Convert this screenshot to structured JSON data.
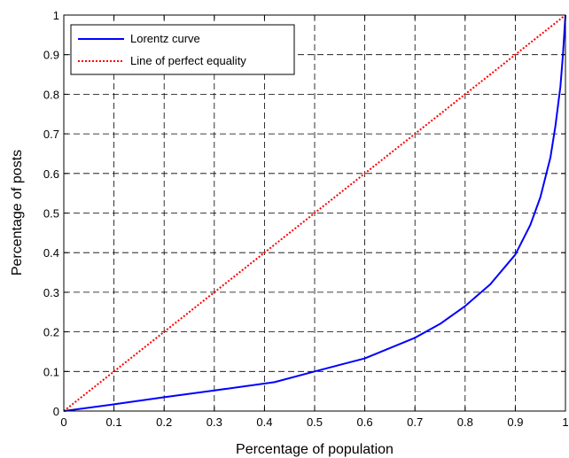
{
  "chart_data": {
    "type": "line",
    "title": "",
    "xlabel": "Percentage of population",
    "ylabel": "Percentage of posts",
    "xlim": [
      0,
      1
    ],
    "ylim": [
      0,
      1
    ],
    "xticks": [
      0,
      0.1,
      0.2,
      0.3,
      0.4,
      0.5,
      0.6,
      0.7,
      0.8,
      0.9,
      1
    ],
    "yticks": [
      0,
      0.1,
      0.2,
      0.3,
      0.4,
      0.5,
      0.6,
      0.7,
      0.8,
      0.9,
      1
    ],
    "xtick_labels": [
      "0",
      "0.1",
      "0.2",
      "0.3",
      "0.4",
      "0.5",
      "0.6",
      "0.7",
      "0.8",
      "0.9",
      "1"
    ],
    "ytick_labels": [
      "0",
      "0.1",
      "0.2",
      "0.3",
      "0.4",
      "0.5",
      "0.6",
      "0.7",
      "0.8",
      "0.9",
      "1"
    ],
    "grid": true,
    "legend_position": "top-left",
    "series": [
      {
        "name": "Lorentz curve",
        "color": "#0000ff",
        "style": "solid",
        "x": [
          0,
          0.1,
          0.2,
          0.3,
          0.42,
          0.5,
          0.6,
          0.7,
          0.75,
          0.8,
          0.85,
          0.9,
          0.93,
          0.95,
          0.97,
          0.98,
          0.99,
          0.995,
          1
        ],
        "y": [
          0,
          0.017,
          0.035,
          0.052,
          0.073,
          0.1,
          0.133,
          0.185,
          0.22,
          0.265,
          0.32,
          0.395,
          0.47,
          0.54,
          0.64,
          0.72,
          0.82,
          0.9,
          1
        ]
      },
      {
        "name": "Line of perfect equality",
        "color": "#ff0000",
        "style": "dotted",
        "x": [
          0,
          1
        ],
        "y": [
          0,
          1
        ]
      }
    ]
  }
}
